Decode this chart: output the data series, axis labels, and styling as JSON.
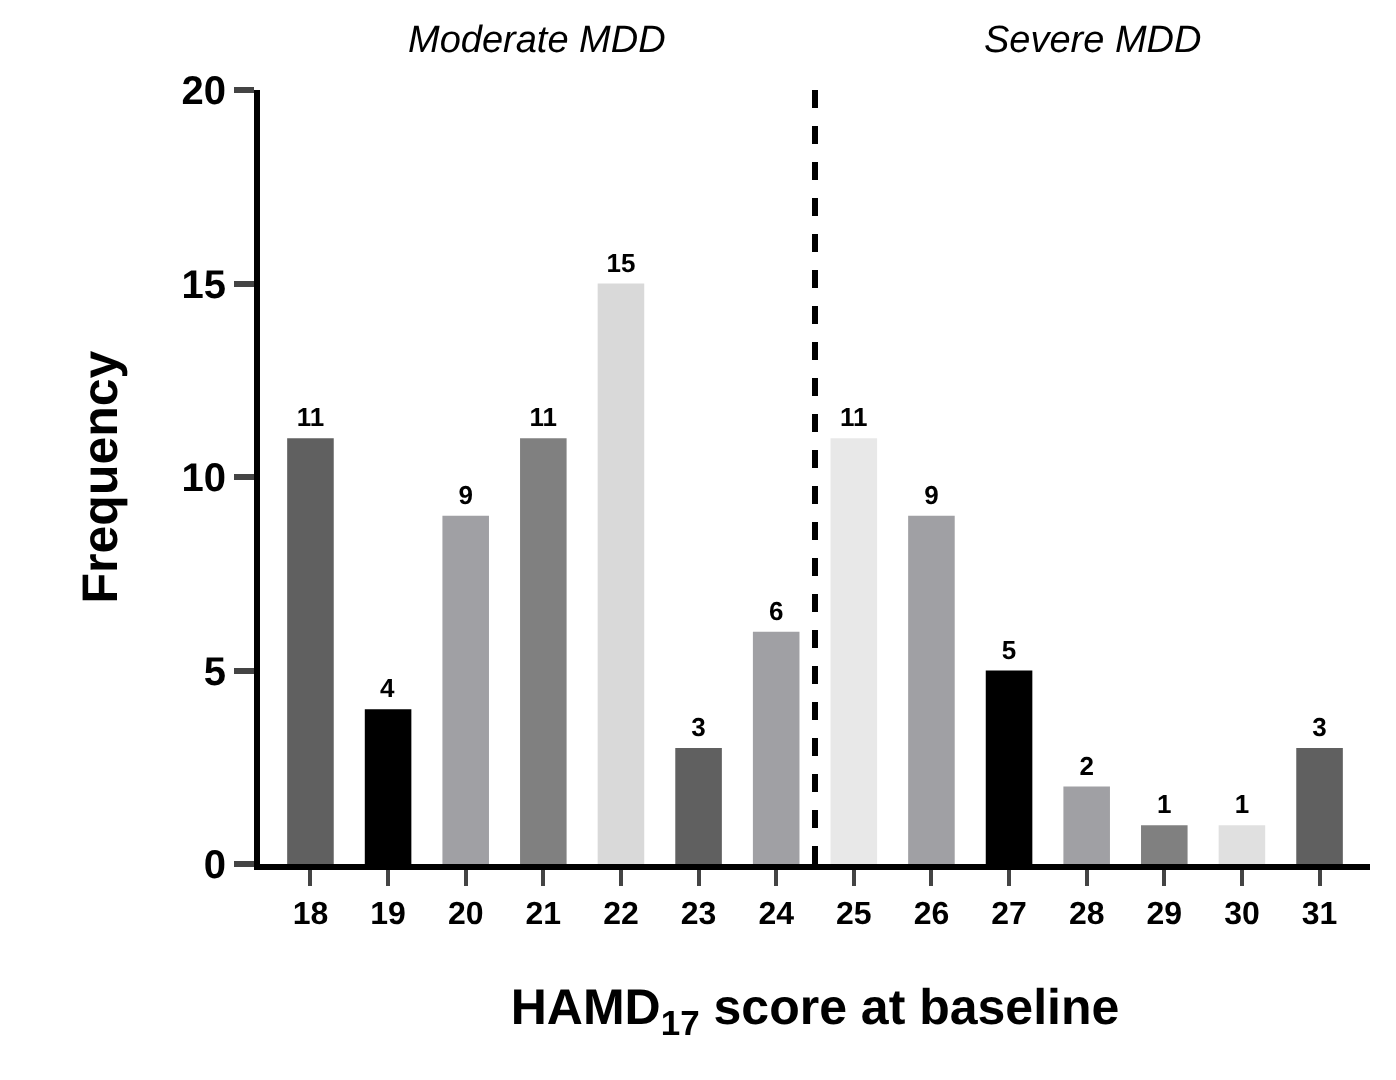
{
  "chart_data": {
    "type": "bar",
    "xlabel": "HAMD$_{17}$ score at baseline",
    "ylabel": "Frequency",
    "x": [
      18,
      19,
      20,
      21,
      22,
      23,
      24,
      25,
      26,
      27,
      28,
      29,
      30,
      31
    ],
    "values": [
      11,
      4,
      9,
      11,
      15,
      3,
      6,
      11,
      9,
      5,
      2,
      1,
      1,
      3
    ],
    "colors": [
      "#606060",
      "#000000",
      "#a0a0a4",
      "#808080",
      "#d9d9d9",
      "#606060",
      "#a0a0a4",
      "#e8e8e8",
      "#a0a0a4",
      "#000000",
      "#a0a0a4",
      "#808080",
      "#e0e0e0",
      "#606060"
    ],
    "xlim": [
      17.35,
      31.65
    ],
    "xticks": [
      18,
      19,
      20,
      21,
      22,
      23,
      24,
      25,
      26,
      27,
      28,
      29,
      30,
      31
    ],
    "ylim": [
      0,
      20
    ],
    "yticks": [
      0,
      5,
      10,
      15,
      20
    ],
    "data_labels": true,
    "grid": false,
    "ref_lines": [
      {
        "axis": "x",
        "value": 24.5,
        "line_style": "dashed",
        "color": "#000000"
      }
    ],
    "annotations": [
      "Moderate MDD",
      "Severe MDD"
    ]
  }
}
